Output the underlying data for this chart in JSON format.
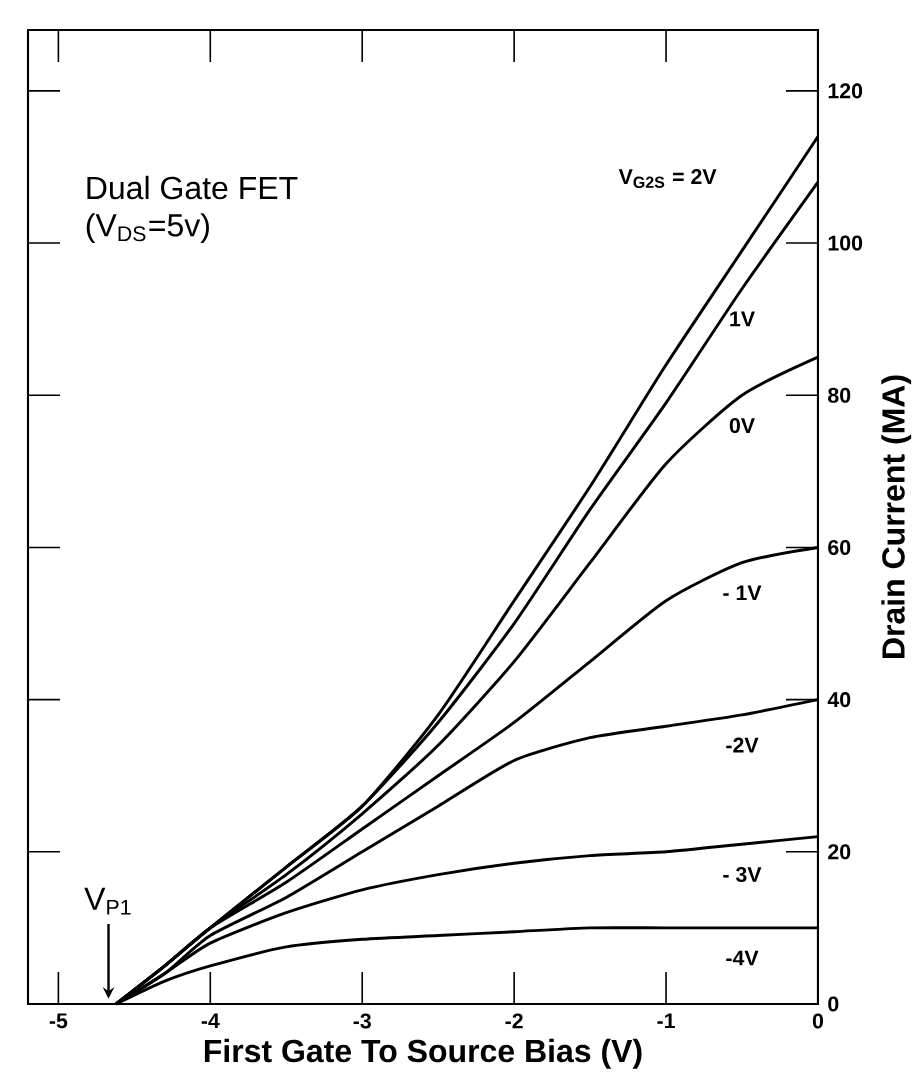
{
  "chart_data": {
    "type": "line",
    "title": "Dual Gate FET",
    "subtitle": "(V$_{DS}$=5v)",
    "xlabel": "First Gate To Source Bias (V)",
    "ylabel": "Drain Current (MA)",
    "x": [
      -4.62,
      -4.3,
      -4,
      -3.5,
      -3,
      -2.5,
      -2,
      -1.5,
      -1,
      -0.5,
      0
    ],
    "series": [
      {
        "name": "V$_{G2S}$ = 2V",
        "color": "#000000",
        "values": [
          0,
          5,
          10,
          18,
          26,
          38,
          53,
          68,
          84,
          99,
          114
        ]
      },
      {
        "name": "1V",
        "color": "#000000",
        "values": [
          0,
          5,
          10,
          18,
          26,
          37,
          50,
          65,
          79,
          94,
          108
        ]
      },
      {
        "name": "0V",
        "color": "#000000",
        "values": [
          0,
          5,
          10,
          17,
          25,
          34,
          45,
          58,
          71,
          80,
          85
        ]
      },
      {
        "name": "- 1V",
        "color": "#000000",
        "values": [
          0,
          5,
          10,
          16,
          23,
          30,
          37,
          45,
          53,
          58,
          60
        ]
      },
      {
        "name": "-2V",
        "color": "#000000",
        "values": [
          0,
          4,
          9,
          14,
          20,
          26,
          32,
          35,
          36.5,
          38,
          40
        ]
      },
      {
        "name": "- 3V",
        "color": "#000000",
        "values": [
          0,
          4,
          8,
          12,
          15,
          17,
          18.5,
          19.5,
          20,
          21,
          22
        ]
      },
      {
        "name": "-4V",
        "color": "#000000",
        "values": [
          0,
          3,
          5,
          7.5,
          8.5,
          9,
          9.5,
          10,
          10,
          10,
          10
        ]
      }
    ],
    "annotations": [
      {
        "text": "V$_{P1}$",
        "x": -4.67,
        "y": 0
      }
    ],
    "xlim": [
      -5.2,
      0
    ],
    "ylim": [
      0,
      128
    ],
    "xticks": [
      -5,
      -4,
      -3,
      -2,
      -1,
      0
    ],
    "yticks": [
      0,
      20,
      40,
      60,
      80,
      100,
      120
    ],
    "grid": false,
    "marker": "none",
    "line_style": "solid"
  }
}
